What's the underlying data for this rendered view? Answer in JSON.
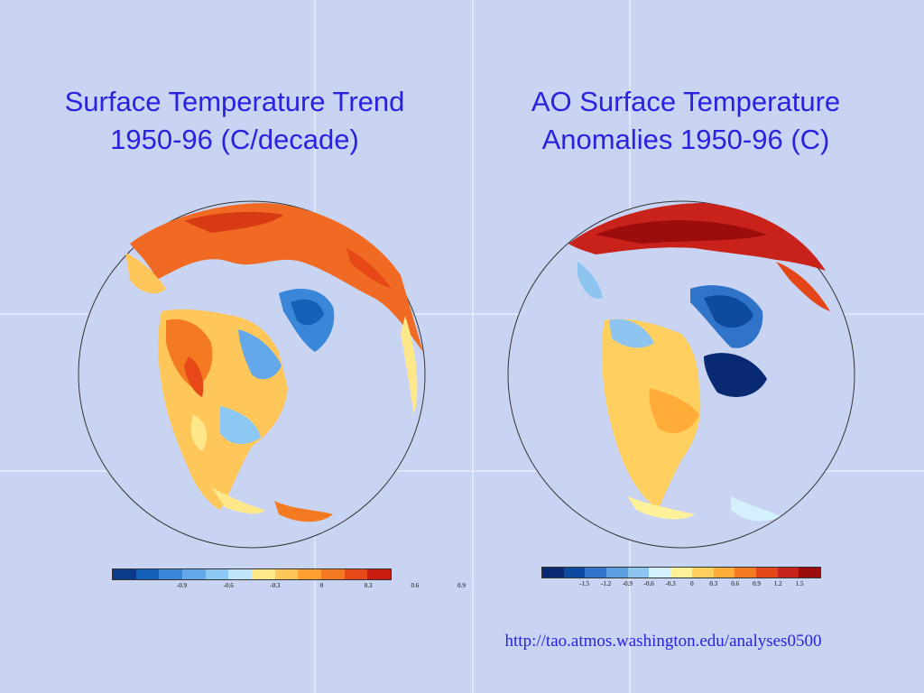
{
  "slide": {
    "background_color": "#c9d4f3",
    "title_color": "#2b22e0"
  },
  "left_panel": {
    "title_line1": "Surface Temperature Trend",
    "title_line2": "1950-96 (C/decade)",
    "colorbar": {
      "colors": [
        "#0a3a8a",
        "#1560b8",
        "#3a86d8",
        "#62a8ea",
        "#8cc8f4",
        "#bfe6fa",
        "#ffe88a",
        "#ffc65a",
        "#ffa030",
        "#f47a22",
        "#e64818",
        "#c81c10"
      ],
      "tick_labels": [
        "-0.9",
        "-0.6",
        "-0.3",
        "0",
        "0.3",
        "0.6",
        "0.9"
      ]
    }
  },
  "right_panel": {
    "title_line1": "AO Surface Temperature",
    "title_line2": "Anomalies 1950-96 (C)",
    "colorbar": {
      "colors": [
        "#082a72",
        "#0d4aa0",
        "#2f74c8",
        "#5c9ee0",
        "#8ec4f0",
        "#d4f0fc",
        "#fff09a",
        "#ffd060",
        "#ffac38",
        "#f47a24",
        "#e4461a",
        "#c8221a",
        "#9c0c0c"
      ],
      "tick_labels": [
        "-1.5",
        "-1.2",
        "-0.9",
        "-0.6",
        "-0.3",
        "0",
        "0.3",
        "0.6",
        "0.9",
        "1.2",
        "1.5"
      ]
    }
  },
  "source_url": "http://tao.atmos.washington.edu/analyses0500"
}
